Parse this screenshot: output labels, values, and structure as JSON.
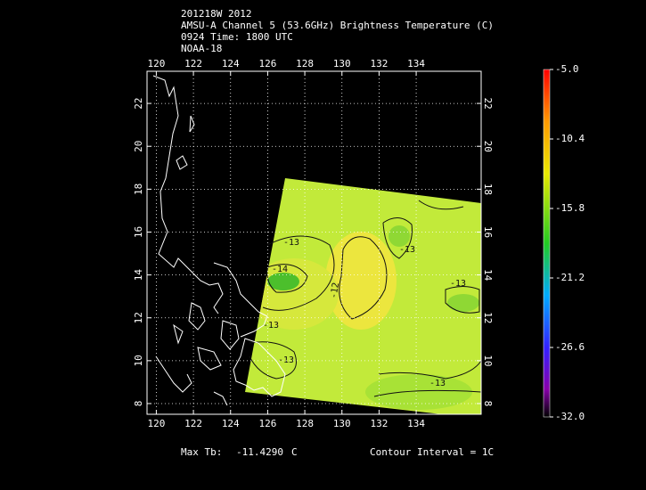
{
  "header": {
    "lines": [
      "201218W 2012",
      "AMSU-A Channel 5 (53.6GHz) Brightness Temperature (C)",
      "0924 Time: 1800 UTC",
      "NOAA-18"
    ]
  },
  "chart_data": {
    "type": "map",
    "xlim": [
      119.5,
      137.5
    ],
    "xticks": [
      120,
      122,
      124,
      126,
      128,
      130,
      132,
      134
    ],
    "ylim": [
      7.5,
      23.5
    ],
    "yticks": [
      8,
      10,
      12,
      14,
      16,
      18,
      20,
      22
    ],
    "grid": true,
    "colorbar": {
      "lim": [
        -32,
        -5
      ],
      "ticks": [
        {
          "value": -5,
          "label": "-5.0"
        },
        -10.4,
        -15.8,
        -21.2,
        -26.6,
        {
          "value": -32,
          "label": "-32.0"
        }
      ]
    },
    "contour_labels": [
      "-13",
      "-14",
      "-12",
      "-13",
      "-13",
      "-13",
      "-13",
      "-13"
    ]
  },
  "footer": {
    "max_label": "Max Tb:",
    "max_value": "-11.4290",
    "max_unit": "C",
    "interval": "Contour Interval = 1C"
  }
}
